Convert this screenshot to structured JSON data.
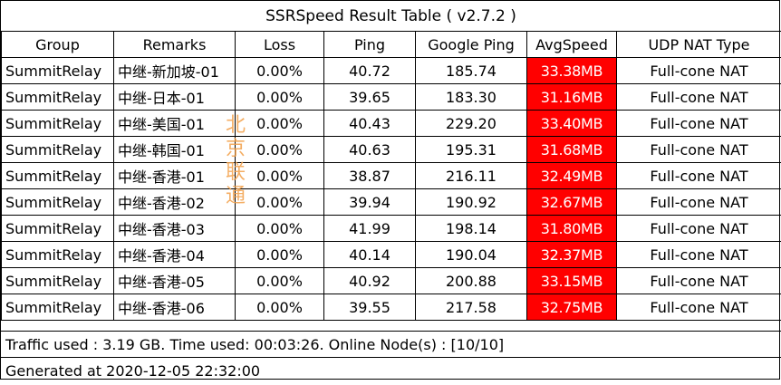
{
  "title": "SSRSpeed Result Table ( v2.7.2 )",
  "columns": [
    "Group",
    "Remarks",
    "Loss",
    "Ping",
    "Google Ping",
    "AvgSpeed",
    "UDP NAT Type"
  ],
  "rows": [
    {
      "group": "SummitRelay",
      "remarks": "中继-新加坡-01",
      "loss": "0.00%",
      "ping": "40.72",
      "google_ping": "185.74",
      "avg_speed": "33.38MB",
      "udp_nat": "Full-cone NAT"
    },
    {
      "group": "SummitRelay",
      "remarks": "中继-日本-01",
      "loss": "0.00%",
      "ping": "39.65",
      "google_ping": "183.30",
      "avg_speed": "31.16MB",
      "udp_nat": "Full-cone NAT"
    },
    {
      "group": "SummitRelay",
      "remarks": "中继-美国-01",
      "loss": "0.00%",
      "ping": "40.43",
      "google_ping": "229.20",
      "avg_speed": "33.40MB",
      "udp_nat": "Full-cone NAT"
    },
    {
      "group": "SummitRelay",
      "remarks": "中继-韩国-01",
      "loss": "0.00%",
      "ping": "40.63",
      "google_ping": "195.31",
      "avg_speed": "31.68MB",
      "udp_nat": "Full-cone NAT"
    },
    {
      "group": "SummitRelay",
      "remarks": "中继-香港-01",
      "loss": "0.00%",
      "ping": "38.87",
      "google_ping": "216.11",
      "avg_speed": "32.49MB",
      "udp_nat": "Full-cone NAT"
    },
    {
      "group": "SummitRelay",
      "remarks": "中继-香港-02",
      "loss": "0.00%",
      "ping": "39.94",
      "google_ping": "190.92",
      "avg_speed": "32.67MB",
      "udp_nat": "Full-cone NAT"
    },
    {
      "group": "SummitRelay",
      "remarks": "中继-香港-03",
      "loss": "0.00%",
      "ping": "41.99",
      "google_ping": "198.14",
      "avg_speed": "31.80MB",
      "udp_nat": "Full-cone NAT"
    },
    {
      "group": "SummitRelay",
      "remarks": "中继-香港-04",
      "loss": "0.00%",
      "ping": "40.14",
      "google_ping": "190.04",
      "avg_speed": "32.37MB",
      "udp_nat": "Full-cone NAT"
    },
    {
      "group": "SummitRelay",
      "remarks": "中继-香港-05",
      "loss": "0.00%",
      "ping": "40.92",
      "google_ping": "200.88",
      "avg_speed": "33.15MB",
      "udp_nat": "Full-cone NAT"
    },
    {
      "group": "SummitRelay",
      "remarks": "中继-香港-06",
      "loss": "0.00%",
      "ping": "39.55",
      "google_ping": "217.58",
      "avg_speed": "32.75MB",
      "udp_nat": "Full-cone NAT"
    }
  ],
  "footer": {
    "traffic": "Traffic used : 3.19 GB. Time used: 00:03:26. Online Node(s) : [10/10]",
    "generated": "Generated at 2020-12-05 22:32:00"
  },
  "watermark": {
    "text": "北京联通",
    "color": "#f3a14a"
  },
  "colors": {
    "speed_cell_bg": "#ff0000",
    "speed_cell_text": "#ffffff"
  }
}
